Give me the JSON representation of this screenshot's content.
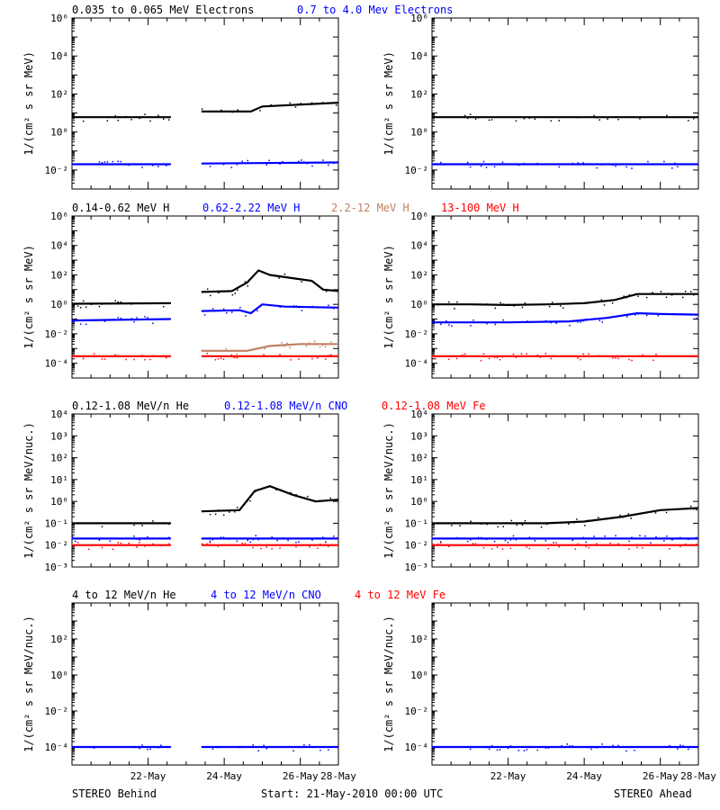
{
  "chart_data": [
    {
      "type": "scatter",
      "title_labels": [
        {
          "text": "0.035 to 0.065 MeV Electrons",
          "color": "#000000"
        },
        {
          "text": "0.7 to 4.0 Mev Electrons",
          "color": "#0000ff"
        }
      ],
      "ylabel": "1/(cm² s sr MeV)",
      "yscale": "log",
      "ylim_exp": [
        -3,
        6
      ],
      "ytick_exps": [
        -2,
        0,
        2,
        4,
        6
      ],
      "ytick_labels": [
        "10⁻²",
        "10⁰",
        "10²",
        "10⁴",
        "10⁶"
      ],
      "behind_series": [
        {
          "color": "#000000",
          "segments": [
            {
              "x": [
                0,
                1.3
              ],
              "y": [
                6,
                6
              ]
            },
            {
              "x": [
                1.7,
                2.35,
                2.5,
                3.5
              ],
              "y": [
                12,
                12,
                22,
                35
              ]
            }
          ]
        },
        {
          "color": "#0000ff",
          "segments": [
            {
              "x": [
                0,
                1.3
              ],
              "y": [
                0.02,
                0.02
              ]
            },
            {
              "x": [
                1.7,
                3.5
              ],
              "y": [
                0.022,
                0.025
              ]
            }
          ]
        }
      ],
      "ahead_series": [
        {
          "color": "#000000",
          "segments": [
            {
              "x": [
                0,
                3.5
              ],
              "y": [
                6,
                6
              ]
            }
          ]
        },
        {
          "color": "#0000ff",
          "segments": [
            {
              "x": [
                0,
                3.5
              ],
              "y": [
                0.02,
                0.02
              ]
            }
          ]
        }
      ]
    },
    {
      "type": "scatter",
      "title_labels": [
        {
          "text": "0.14-0.62 MeV H",
          "color": "#000000"
        },
        {
          "text": "0.62-2.22 MeV H",
          "color": "#0000ff"
        },
        {
          "text": "2.2-12 MeV H",
          "color": "#c08060"
        },
        {
          "text": "13-100 MeV H",
          "color": "#ff0000"
        }
      ],
      "ylabel": "1/(cm² s sr MeV)",
      "yscale": "log",
      "ylim_exp": [
        -5,
        6
      ],
      "ytick_exps": [
        -4,
        -2,
        0,
        2,
        4,
        6
      ],
      "ytick_labels": [
        "10⁻⁴",
        "10⁻²",
        "10⁰",
        "10²",
        "10⁴",
        "10⁶"
      ],
      "behind_series": [
        {
          "color": "#000000",
          "segments": [
            {
              "x": [
                0,
                1.3
              ],
              "y": [
                1.1,
                1.2
              ]
            },
            {
              "x": [
                1.7,
                2.1,
                2.3,
                2.45,
                2.6,
                2.9,
                3.15,
                3.3,
                3.5
              ],
              "y": [
                7,
                8,
                30,
                200,
                100,
                60,
                40,
                10,
                8
              ]
            }
          ]
        },
        {
          "color": "#0000ff",
          "segments": [
            {
              "x": [
                0,
                1.3
              ],
              "y": [
                0.08,
                0.1
              ]
            },
            {
              "x": [
                1.7,
                2.2,
                2.35,
                2.5,
                2.8,
                3.5
              ],
              "y": [
                0.35,
                0.4,
                0.25,
                1.0,
                0.7,
                0.6
              ]
            }
          ]
        },
        {
          "color": "#c08060",
          "segments": [
            {
              "x": [
                1.7,
                2.3,
                2.6,
                3.0,
                3.5
              ],
              "y": [
                0.0007,
                0.0007,
                0.0015,
                0.002,
                0.002
              ]
            }
          ]
        },
        {
          "color": "#ff0000",
          "segments": [
            {
              "x": [
                0,
                1.3
              ],
              "y": [
                0.0003,
                0.0003
              ]
            },
            {
              "x": [
                1.7,
                3.5
              ],
              "y": [
                0.0003,
                0.0003
              ]
            }
          ]
        }
      ],
      "ahead_series": [
        {
          "color": "#000000",
          "segments": [
            {
              "x": [
                0,
                0.5,
                1.0,
                1.5,
                2.0,
                2.4,
                2.7,
                3.0,
                3.5
              ],
              "y": [
                1.0,
                1.0,
                0.9,
                1.0,
                1.2,
                2.0,
                5.0,
                5.0,
                5.0
              ]
            }
          ]
        },
        {
          "color": "#0000ff",
          "segments": [
            {
              "x": [
                0,
                1.0,
                1.8,
                2.3,
                2.7,
                3.0,
                3.5
              ],
              "y": [
                0.06,
                0.06,
                0.07,
                0.12,
                0.25,
                0.22,
                0.2
              ]
            }
          ]
        },
        {
          "color": "#ff0000",
          "segments": [
            {
              "x": [
                0,
                3.5
              ],
              "y": [
                0.0003,
                0.0003
              ]
            }
          ]
        }
      ]
    },
    {
      "type": "scatter",
      "title_labels": [
        {
          "text": "0.12-1.08 MeV/n He",
          "color": "#000000"
        },
        {
          "text": "0.12-1.08 MeV/n CNO",
          "color": "#0000ff"
        },
        {
          "text": "0.12-1.08 MeV Fe",
          "color": "#ff0000"
        }
      ],
      "ylabel": "1/(cm² s sr MeV/nuc.)",
      "yscale": "log",
      "ylim_exp": [
        -3,
        4
      ],
      "ytick_exps": [
        -3,
        -2,
        -1,
        0,
        1,
        2,
        3,
        4
      ],
      "ytick_labels": [
        "10⁻³",
        "10⁻²",
        "10⁻¹",
        "10⁰",
        "10¹",
        "10²",
        "10³",
        "10⁴"
      ],
      "behind_series": [
        {
          "color": "#000000",
          "segments": [
            {
              "x": [
                0,
                1.3
              ],
              "y": [
                0.1,
                0.1
              ]
            },
            {
              "x": [
                1.7,
                2.2,
                2.4,
                2.6,
                2.9,
                3.2,
                3.5
              ],
              "y": [
                0.35,
                0.4,
                3,
                5,
                2,
                1,
                1.2
              ]
            }
          ]
        },
        {
          "color": "#0000ff",
          "segments": [
            {
              "x": [
                0,
                1.3
              ],
              "y": [
                0.02,
                0.02
              ]
            },
            {
              "x": [
                1.7,
                3.5
              ],
              "y": [
                0.02,
                0.02
              ]
            }
          ]
        },
        {
          "color": "#ff0000",
          "segments": [
            {
              "x": [
                0,
                1.3
              ],
              "y": [
                0.01,
                0.01
              ]
            },
            {
              "x": [
                1.7,
                3.5
              ],
              "y": [
                0.01,
                0.01
              ]
            }
          ]
        }
      ],
      "ahead_series": [
        {
          "color": "#000000",
          "segments": [
            {
              "x": [
                0,
                1.5,
                2.0,
                2.5,
                3.0,
                3.5
              ],
              "y": [
                0.1,
                0.1,
                0.12,
                0.2,
                0.4,
                0.5
              ]
            }
          ]
        },
        {
          "color": "#0000ff",
          "segments": [
            {
              "x": [
                0,
                3.5
              ],
              "y": [
                0.02,
                0.02
              ]
            }
          ]
        },
        {
          "color": "#ff0000",
          "segments": [
            {
              "x": [
                0,
                3.5
              ],
              "y": [
                0.01,
                0.01
              ]
            }
          ]
        }
      ]
    },
    {
      "type": "scatter",
      "title_labels": [
        {
          "text": "4 to 12 MeV/n He",
          "color": "#000000"
        },
        {
          "text": "4 to 12 MeV/n CNO",
          "color": "#0000ff"
        },
        {
          "text": "4 to 12 MeV Fe",
          "color": "#ff0000"
        }
      ],
      "ylabel": "1/(cm² s sr MeV/nuc.)",
      "yscale": "log",
      "ylim_exp": [
        -5,
        4
      ],
      "ytick_exps": [
        -4,
        -2,
        0,
        2
      ],
      "ytick_labels": [
        "10⁻⁴",
        "10⁻²",
        "10⁰",
        "10²"
      ],
      "behind_series": [
        {
          "color": "#0000ff",
          "segments": [
            {
              "x": [
                0,
                1.3
              ],
              "y": [
                0.0001,
                0.0001
              ]
            },
            {
              "x": [
                1.7,
                3.5
              ],
              "y": [
                0.0001,
                0.0001
              ]
            }
          ]
        }
      ],
      "ahead_series": [
        {
          "color": "#0000ff",
          "segments": [
            {
              "x": [
                0,
                3.5
              ],
              "y": [
                0.0001,
                0.0001
              ]
            }
          ]
        }
      ]
    }
  ],
  "x_axis": {
    "tick_labels": [
      "22-May",
      "24-May",
      "26-May",
      "28-May"
    ],
    "range_days": [
      0,
      3.5
    ]
  },
  "footer": {
    "left": "STEREO Behind",
    "center": "Start: 21-May-2010 00:00 UTC",
    "right": "STEREO Ahead"
  }
}
